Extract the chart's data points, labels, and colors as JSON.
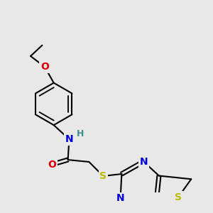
{
  "bg_color": "#e8e8e8",
  "bond_color": "#000000",
  "bond_lw": 1.5,
  "atom_colors": {
    "N": "#0000dd",
    "O": "#dd0000",
    "S": "#bbbb00",
    "H": "#3a9090"
  },
  "fs": 9,
  "figsize": [
    3.0,
    3.0
  ],
  "dpi": 100,
  "scale": 1.0
}
